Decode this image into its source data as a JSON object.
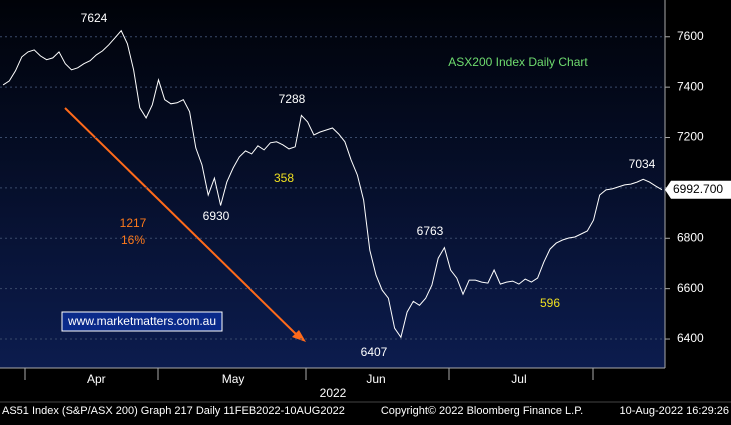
{
  "chart_data": {
    "type": "line",
    "title": "ASX200 Index Daily Chart",
    "x_label": "2022",
    "categories": [
      null,
      null,
      null,
      null,
      null,
      null,
      null,
      null,
      null,
      null,
      null,
      null,
      null,
      null,
      null,
      "Apr",
      null,
      null,
      null,
      null,
      null,
      null,
      null,
      null,
      null,
      null,
      null,
      null,
      null,
      null,
      null,
      null,
      null,
      null,
      null,
      null,
      null,
      "May",
      null,
      null,
      null,
      null,
      null,
      null,
      null,
      null,
      null,
      null,
      null,
      null,
      null,
      null,
      null,
      null,
      null,
      null,
      null,
      null,
      null,
      null,
      "Jun",
      null,
      null,
      null,
      null,
      null,
      null,
      null,
      null,
      null,
      null,
      null,
      null,
      null,
      null,
      null,
      null,
      null,
      null,
      null,
      null,
      null,
      null,
      "Jul",
      null,
      null,
      null,
      null,
      null,
      null,
      null,
      null,
      null,
      null,
      null,
      null,
      null,
      null,
      null,
      null,
      null,
      null,
      null,
      null,
      null,
      null,
      null
    ],
    "series": [
      {
        "name": "AS51 Index",
        "color": "#ffffff",
        "values": [
          7409,
          7425,
          7465,
          7520,
          7540,
          7548,
          7524,
          7509,
          7516,
          7540,
          7493,
          7469,
          7477,
          7493,
          7505,
          7528,
          7544,
          7568,
          7596,
          7624,
          7572,
          7469,
          7318,
          7278,
          7330,
          7429,
          7350,
          7334,
          7338,
          7350,
          7302,
          7159,
          7091,
          6972,
          7039,
          6930,
          7023,
          7079,
          7123,
          7147,
          7135,
          7167,
          7151,
          7179,
          7183,
          7171,
          7155,
          7163,
          7288,
          7262,
          7210,
          7222,
          7230,
          7238,
          7214,
          7183,
          7111,
          7051,
          6952,
          6753,
          6654,
          6594,
          6562,
          6443,
          6407,
          6507,
          6550,
          6534,
          6562,
          6614,
          6721,
          6763,
          6674,
          6642,
          6578,
          6634,
          6634,
          6626,
          6622,
          6674,
          6618,
          6626,
          6630,
          6618,
          6638,
          6626,
          6642,
          6705,
          6757,
          6781,
          6793,
          6801,
          6805,
          6817,
          6829,
          6872,
          6972,
          6992,
          6996,
          7004,
          7012,
          7015,
          7023,
          7034,
          7023,
          7007,
          6992.7
        ]
      }
    ],
    "ylim": [
      6285,
      7746
    ],
    "yticks": [
      6400,
      6600,
      6800,
      7000,
      7200,
      7400,
      7600
    ],
    "grid": true,
    "last_price": {
      "value": 6992.7,
      "label": "6992.700"
    },
    "annotations": [
      "7624",
      "6930",
      "7288",
      "358",
      "6407",
      "6763",
      "596",
      "7034",
      "1217",
      "16%",
      "www.marketmatters.com.au"
    ],
    "footer": [
      "AS51 Index (S&P/ASX 200) Graph 217  Daily 11FEB2022-10AUG2022",
      "Copyright© 2022 Bloomberg Finance L.P.",
      "10-Aug-2022 16:29:26"
    ]
  }
}
